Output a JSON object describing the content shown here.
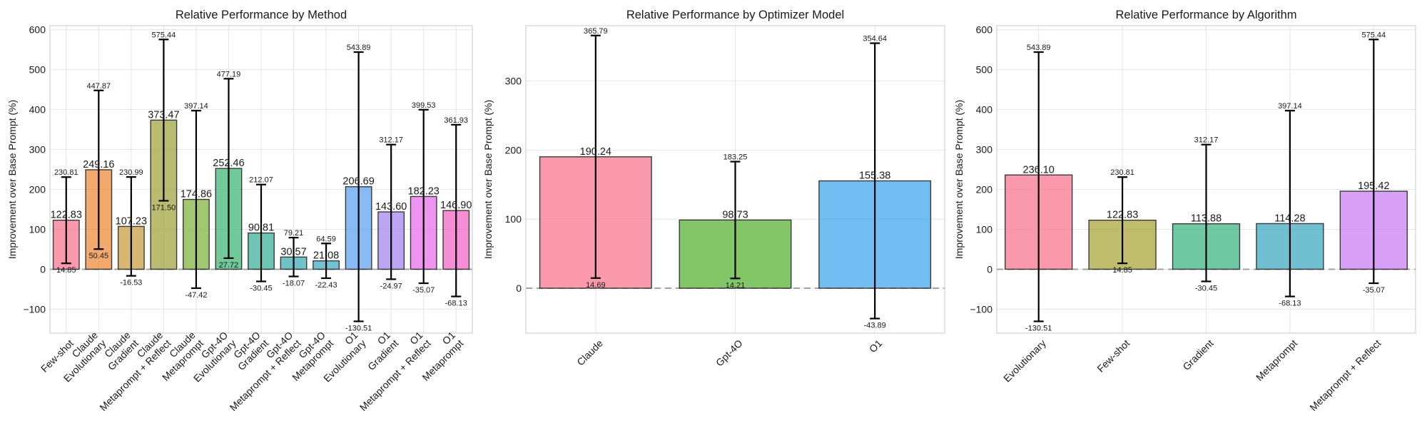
{
  "chart_data": [
    {
      "type": "bar",
      "title": "Relative Performance by Method",
      "ylabel": "Improvement over Base Prompt (%)",
      "xlabel": "",
      "ylim": [
        -160,
        610
      ],
      "yticks": [
        -100,
        0,
        100,
        200,
        300,
        400,
        500,
        600
      ],
      "grid": true,
      "categories": [
        "Few-shot",
        "Claude\nEvolutionary",
        "Claude\nGradient",
        "Claude\nMetaprompt + Reflect",
        "Claude\nMetaprompt",
        "Gpt-4O\nEvolutionary",
        "Gpt-4O\nGradient",
        "Gpt-4O\nMetaprompt + Reflect",
        "Gpt-4O\nMetaprompt",
        "O1\nEvolutionary",
        "O1\nGradient",
        "O1\nMetaprompt + Reflect",
        "O1\nMetaprompt"
      ],
      "values": [
        122.83,
        249.16,
        107.23,
        373.47,
        174.86,
        252.46,
        90.81,
        30.57,
        21.08,
        206.69,
        143.6,
        182.23,
        146.9
      ],
      "err_low": [
        14.85,
        50.45,
        -16.53,
        171.5,
        -47.42,
        27.72,
        -30.45,
        -18.07,
        -22.43,
        -130.51,
        -24.97,
        -35.07,
        -68.13
      ],
      "err_high": [
        230.81,
        447.87,
        230.99,
        575.44,
        397.14,
        477.19,
        212.07,
        79.21,
        64.59,
        543.89,
        312.17,
        399.53,
        361.93
      ],
      "colors": [
        "#f6728a",
        "#ee8833",
        "#c79b3a",
        "#9ea13a",
        "#7eb13a",
        "#39b673",
        "#36ae95",
        "#38aab1",
        "#3cabc5",
        "#5a9fef",
        "#9f84ed",
        "#e86ceb",
        "#f263c6"
      ]
    },
    {
      "type": "bar",
      "title": "Relative Performance by Optimizer Model",
      "ylabel": "Improvement over Base Prompt (%)",
      "xlabel": "",
      "ylim": [
        -65,
        380
      ],
      "yticks": [
        0,
        100,
        200,
        300
      ],
      "grid": true,
      "categories": [
        "Claude",
        "Gpt-4O",
        "O1"
      ],
      "values": [
        190.24,
        98.73,
        155.38
      ],
      "err_low": [
        14.69,
        14.21,
        -43.89
      ],
      "err_high": [
        365.79,
        183.25,
        354.64
      ],
      "colors": [
        "#f6728a",
        "#52b02e",
        "#3ba3ec"
      ]
    },
    {
      "type": "bar",
      "title": "Relative Performance by Algorithm",
      "ylabel": "Improvement over Base Prompt (%)",
      "xlabel": "",
      "ylim": [
        -160,
        610
      ],
      "yticks": [
        -100,
        0,
        100,
        200,
        300,
        400,
        500,
        600
      ],
      "grid": true,
      "categories": [
        "Evolutionary",
        "Few-shot",
        "Gradient",
        "Metaprompt",
        "Metaprompt + Reflect"
      ],
      "values": [
        236.1,
        122.83,
        113.88,
        114.28,
        195.42
      ],
      "err_low": [
        -130.51,
        14.85,
        -30.45,
        -68.13,
        -35.07
      ],
      "err_high": [
        543.89,
        230.81,
        312.17,
        397.14,
        575.44
      ],
      "colors": [
        "#f6728a",
        "#a6a332",
        "#39b482",
        "#3aa8c1",
        "#cb7cf5"
      ]
    }
  ]
}
